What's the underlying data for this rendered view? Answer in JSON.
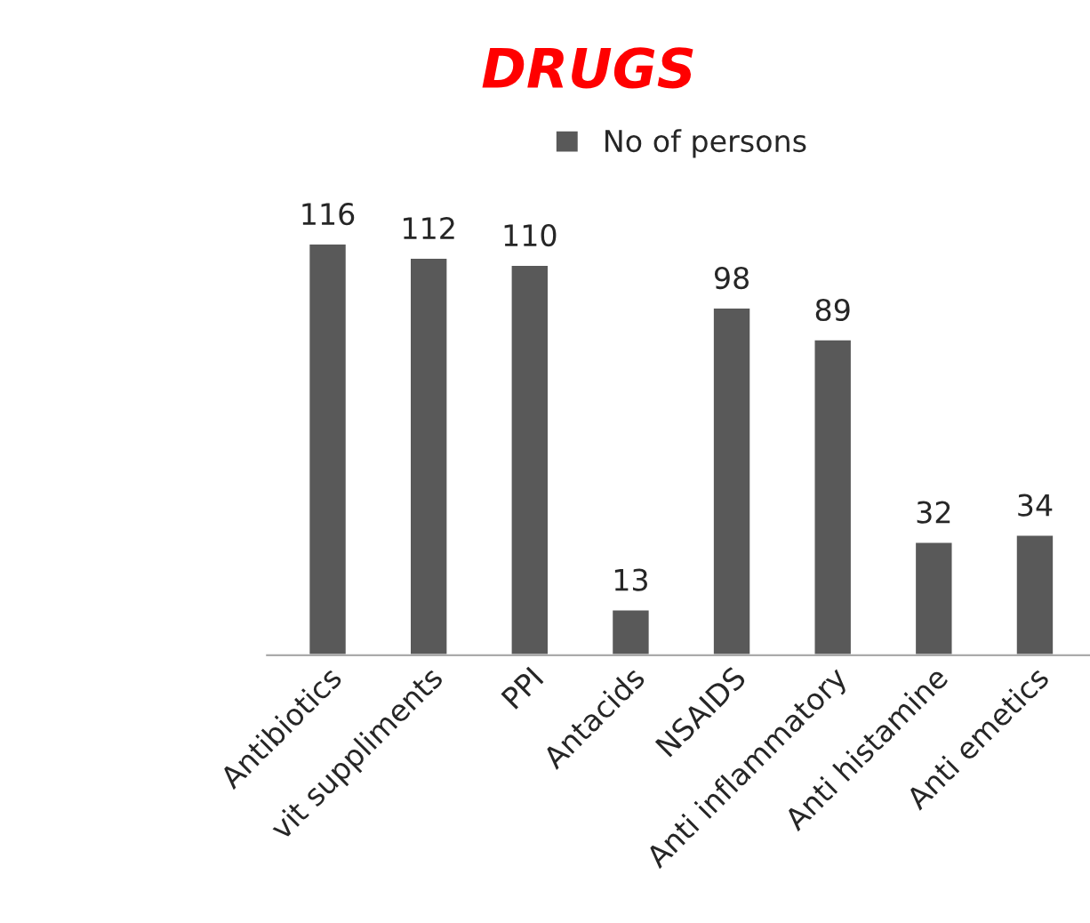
{
  "chart_data": {
    "type": "bar",
    "title": "DRUGS",
    "categories": [
      "Antibiotics",
      "vit suppliments",
      "PPI",
      "Antacids",
      "NSAIDS",
      "Anti inflammatory",
      "Anti histamine",
      "Anti emetics"
    ],
    "series": [
      {
        "name": "No of persons",
        "color": "#595959",
        "values": [
          116,
          112,
          110,
          13,
          98,
          89,
          32,
          34
        ]
      }
    ],
    "data_labels": true,
    "legend": "top",
    "grid": false
  }
}
